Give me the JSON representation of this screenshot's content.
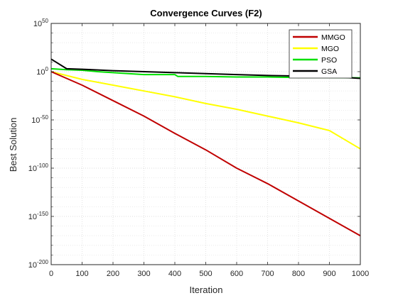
{
  "chart_data": {
    "type": "line",
    "title": "Convergence Curves (F2)",
    "xlabel": "Iteration",
    "ylabel": "Best Solution",
    "xlim": [
      0,
      1000
    ],
    "x_ticks": [
      "0",
      "100",
      "200",
      "300",
      "400",
      "500",
      "600",
      "700",
      "800",
      "900",
      "1000"
    ],
    "y_scale": "log",
    "ylim_exp": [
      -200,
      50
    ],
    "y_ticks": [
      {
        "base": "10",
        "exp": "50"
      },
      {
        "base": "10",
        "exp": "0"
      },
      {
        "base": "10",
        "exp": "-50"
      },
      {
        "base": "10",
        "exp": "-100"
      },
      {
        "base": "10",
        "exp": "-150"
      },
      {
        "base": "10",
        "exp": "-200"
      }
    ],
    "grid": true,
    "legend_position": "top-right",
    "series": [
      {
        "name": "MMGO",
        "color": "#c00000",
        "x": [
          0,
          100,
          200,
          300,
          400,
          500,
          600,
          700,
          800,
          900,
          1000
        ],
        "log10": [
          0,
          -14,
          -30,
          -46,
          -64,
          -81,
          -100,
          -116,
          -134,
          -152,
          -170
        ]
      },
      {
        "name": "MGO",
        "color": "#ffff00",
        "x": [
          0,
          100,
          200,
          300,
          400,
          500,
          600,
          700,
          800,
          900,
          1000
        ],
        "log10": [
          0,
          -8,
          -14,
          -20,
          -26,
          -33,
          -39,
          -46,
          -53,
          -61,
          -80
        ]
      },
      {
        "name": "PSO",
        "color": "#00e000",
        "x": [
          0,
          50,
          100,
          150,
          200,
          250,
          300,
          400,
          410,
          500,
          600,
          700,
          800,
          900,
          1000
        ],
        "log10": [
          3,
          2,
          1.5,
          0,
          -1,
          -2,
          -3,
          -3,
          -5,
          -5,
          -5.5,
          -5.5,
          -6,
          -6,
          -6.5
        ]
      },
      {
        "name": "GSA",
        "color": "#000000",
        "x": [
          0,
          50,
          100,
          200,
          300,
          400,
          500,
          600,
          700,
          800,
          900,
          1000
        ],
        "log10": [
          13,
          3,
          2.5,
          1,
          0,
          -1,
          -2,
          -3,
          -4,
          -4.5,
          -5,
          -7
        ]
      }
    ]
  }
}
